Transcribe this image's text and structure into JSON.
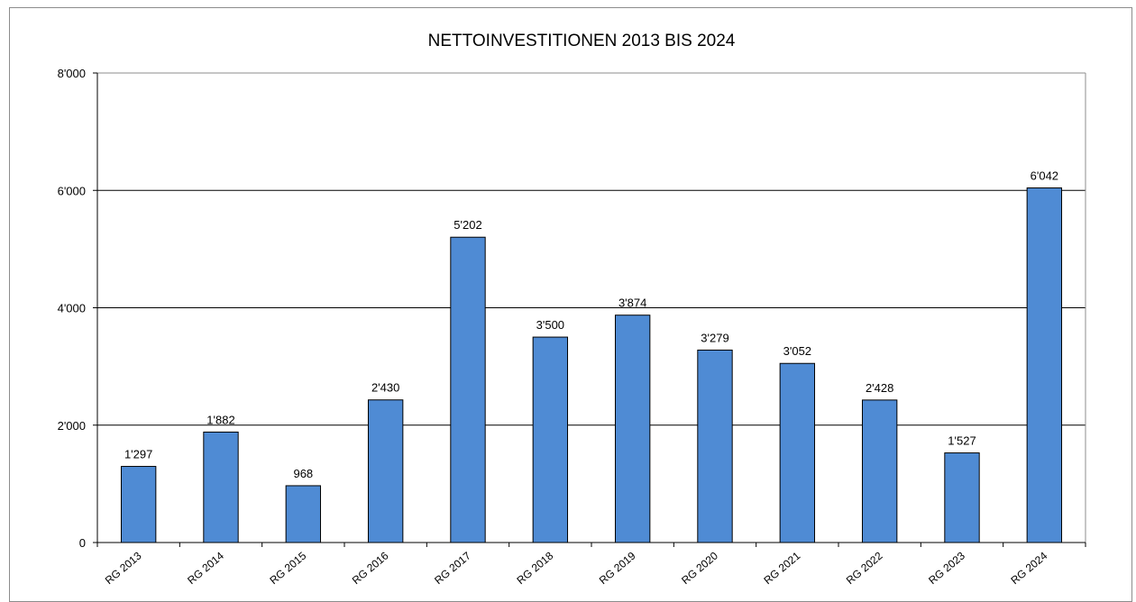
{
  "chart_data": {
    "type": "bar",
    "title": "NETTOINVESTITIONEN 2013 BIS 2024",
    "categories": [
      "RG 2013",
      "RG 2014",
      "RG 2015",
      "RG 2016",
      "RG 2017",
      "RG 2018",
      "RG 2019",
      "RG 2020",
      "RG 2021",
      "RG 2022",
      "RG 2023",
      "RG 2024"
    ],
    "values": [
      1297,
      1882,
      968,
      2430,
      5202,
      3500,
      3874,
      3279,
      3052,
      2428,
      1527,
      6042
    ],
    "value_labels": [
      "1'297",
      "1'882",
      "968",
      "2'430",
      "5'202",
      "3'500",
      "3'874",
      "3'279",
      "3'052",
      "2'428",
      "1'527",
      "6'042"
    ],
    "ylim": [
      0,
      8000
    ],
    "yticks": [
      0,
      2000,
      4000,
      6000,
      8000
    ],
    "ytick_labels": [
      "0",
      "2'000",
      "4'000",
      "6'000",
      "8'000"
    ],
    "grid": true,
    "bar_color": "#4f8bd4",
    "xlabel": "",
    "ylabel": ""
  }
}
